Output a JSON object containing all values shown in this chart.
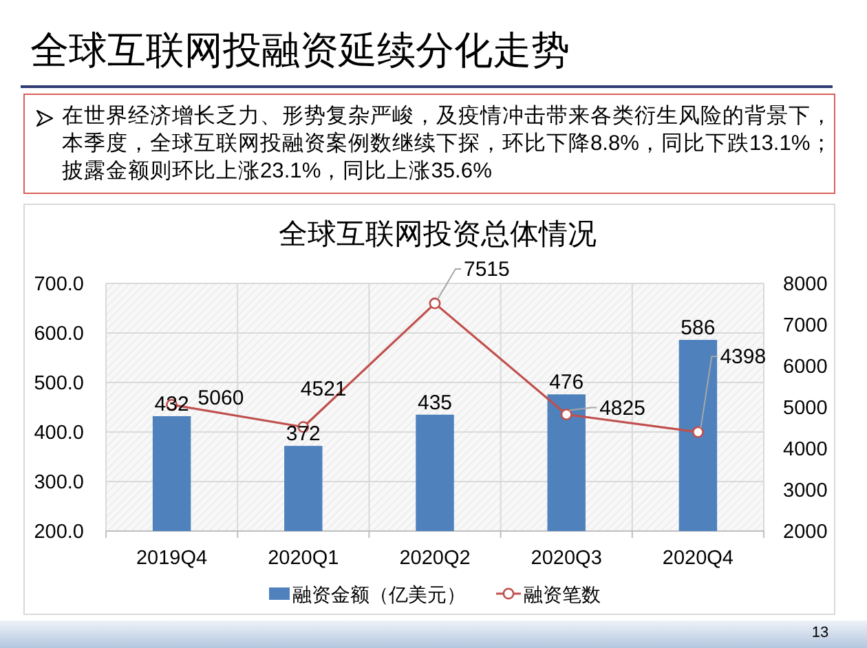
{
  "chart_data": {
    "type": "bar",
    "title": "全球互联网投融资延续分化走势",
    "subtitle": "全球互联网投资总体情况",
    "categories": [
      "2019Q4",
      "2020Q1",
      "2020Q2",
      "2020Q3",
      "2020Q4"
    ],
    "series": [
      {
        "name": "融资金额（亿美元）",
        "color": "#4f81bd",
        "values": [
          432,
          372,
          435,
          476,
          586
        ]
      },
      {
        "name": "融资笔数",
        "type": "line",
        "axis": "y2",
        "color": "#c0504d",
        "marker": "circle",
        "values": [
          5060,
          4521,
          7515,
          4825,
          4398
        ]
      }
    ],
    "ylim": [
      200,
      700
    ],
    "yticks": [
      {
        "value": 200,
        "label": "200.0"
      },
      {
        "value": 300,
        "label": "300.0"
      },
      {
        "value": 400,
        "label": "400.0"
      },
      {
        "value": 500,
        "label": "500.0"
      },
      {
        "value": 600,
        "label": "600.0"
      },
      {
        "value": 700,
        "label": "700.0"
      }
    ],
    "y2lim": [
      2000,
      8000
    ],
    "y2ticks": [
      2000,
      3000,
      4000,
      5000,
      6000,
      7000,
      8000
    ],
    "grid": true,
    "legend": "bottom",
    "data_labels": true,
    "annotations": [
      "在世界经济增长乏力、形势复杂严峻，及疫情冲击带来各类衍生风险的背景下，本季度，全球互联网投融资案例数继续下探，环比下降8.8%，同比下跌13.1%；披露金额则环比上涨23.1%，同比上涨35.6%",
      "13"
    ]
  }
}
